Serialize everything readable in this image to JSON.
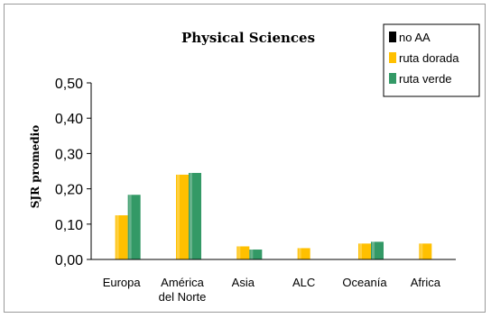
{
  "chart_data": {
    "type": "bar",
    "title": "Physical Sciences",
    "ylabel": "SJR promedio",
    "xlabel": "",
    "categories": [
      [
        "Europa"
      ],
      [
        "América",
        "del Norte"
      ],
      [
        "Asia"
      ],
      [
        "ALC"
      ],
      [
        "Oceanía"
      ],
      [
        "Africa"
      ]
    ],
    "yticks": [
      "0,00",
      "0,10",
      "0,20",
      "0,30",
      "0,40",
      "0,50"
    ],
    "ylim": [
      0,
      0.5
    ],
    "series": [
      {
        "name": "no AA",
        "color": "#000000",
        "values": [
          0,
          0,
          0,
          0,
          0,
          0
        ]
      },
      {
        "name": "ruta dorada",
        "color": "#FFC000",
        "values": [
          0.125,
          0.24,
          0.037,
          0.032,
          0.045,
          0.045
        ]
      },
      {
        "name": "ruta verde",
        "color": "#339966",
        "values": [
          0.183,
          0.245,
          0.028,
          0,
          0.05,
          0
        ]
      }
    ],
    "legend_position": "top-right",
    "grid": false
  }
}
